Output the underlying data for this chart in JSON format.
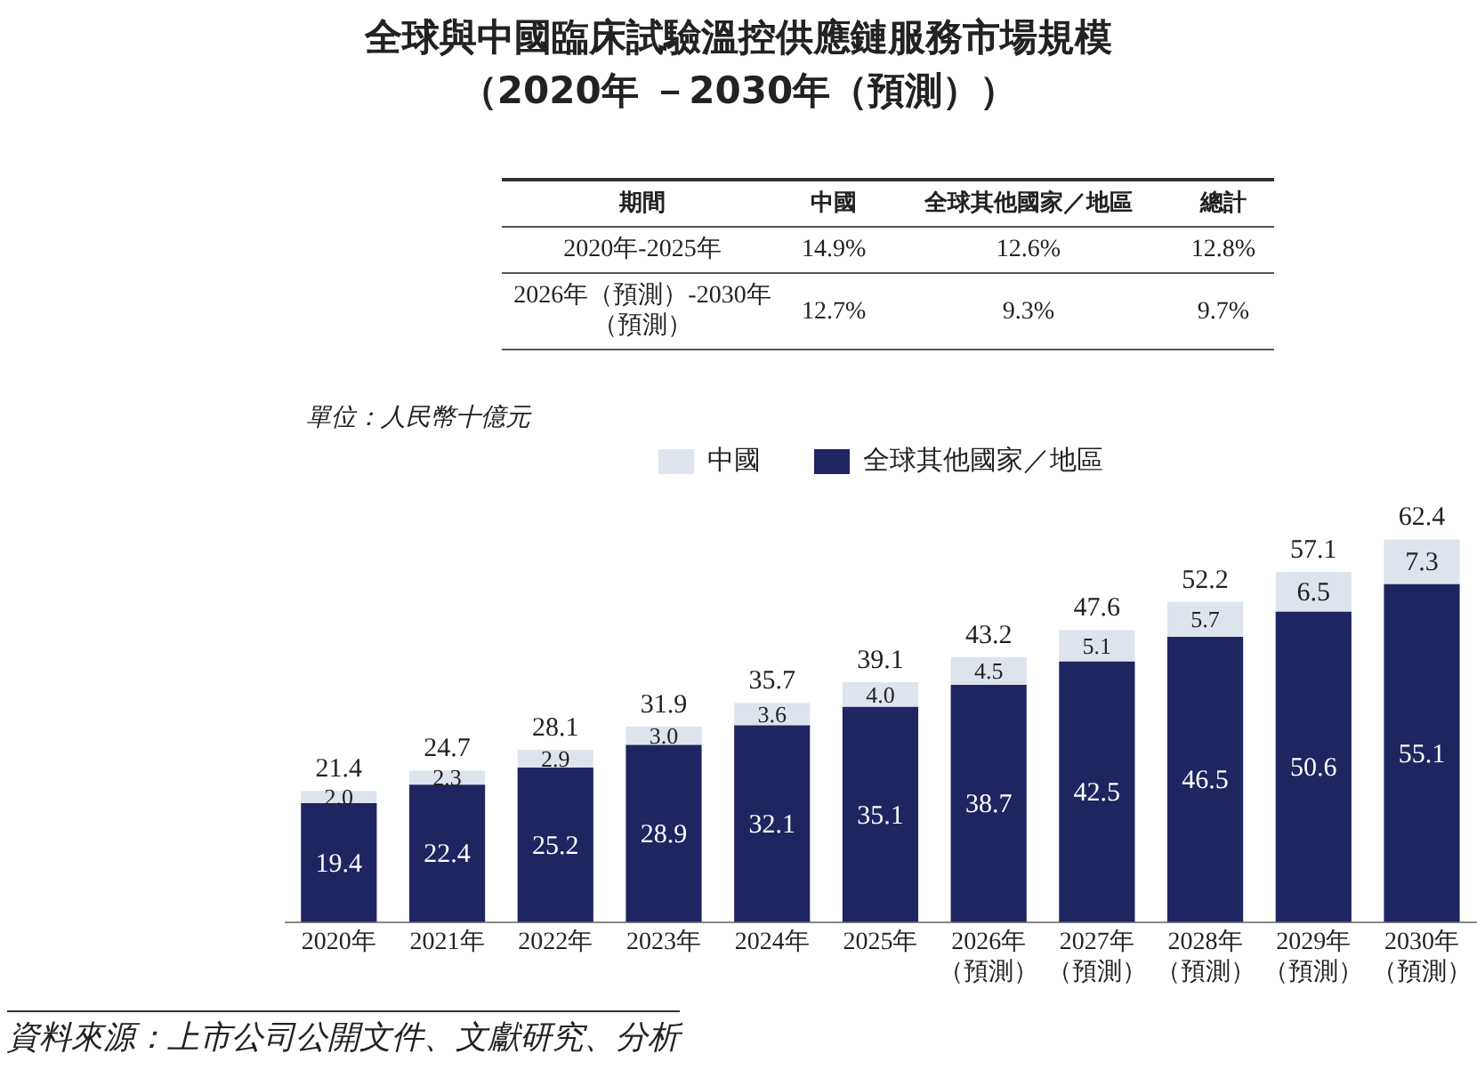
{
  "chart_data": {
    "type": "bar",
    "title": "全球與中國臨床試驗溫控供應鏈服務市場規模",
    "subtitle": "（2020年 －2030年（預測））",
    "ylabel": "單位：人民幣十億元",
    "categories": [
      "2020年",
      "2021年",
      "2022年",
      "2023年",
      "2024年",
      "2025年",
      "2026年（預測）",
      "2027年（預測）",
      "2028年（預測）",
      "2029年（預測）",
      "2030年（預測）"
    ],
    "series": [
      {
        "name": "全球其他國家／地區",
        "color": "#1f2560",
        "values": [
          19.4,
          22.4,
          25.2,
          28.9,
          32.1,
          35.1,
          38.7,
          42.5,
          46.5,
          50.6,
          55.1
        ],
        "value_labels": [
          "19.4",
          "22.4",
          "25.2",
          "28.9",
          "32.1",
          "35.1",
          "38.7",
          "42.5",
          "46.5",
          "50.6",
          "55.1"
        ]
      },
      {
        "name": "中國",
        "color": "#dde4ed",
        "values": [
          2.0,
          2.3,
          2.9,
          3.0,
          3.6,
          4.0,
          4.5,
          5.1,
          5.7,
          6.5,
          7.3
        ],
        "value_labels": [
          "2.0",
          "2.3",
          "2.9",
          "3.0",
          "3.6",
          "4.0",
          "4.5",
          "5.1",
          "5.7",
          "6.5",
          "7.3"
        ]
      }
    ],
    "stacked": true,
    "totals": [
      "21.4",
      "24.7",
      "28.1",
      "31.9",
      "35.7",
      "39.1",
      "43.2",
      "47.6",
      "52.2",
      "57.1",
      "62.4"
    ],
    "legend": "top",
    "grid": false,
    "annotations": [
      "期間",
      "中國",
      "全球其他國家／地區",
      "總計",
      "2020年-2025年",
      "14.9%",
      "12.6%",
      "12.8%",
      "2026年（預測）-2030年（預測）",
      "12.7%",
      "9.3%",
      "9.7%",
      "資料來源：上市公司公開文件、文獻研究、分析"
    ]
  }
}
